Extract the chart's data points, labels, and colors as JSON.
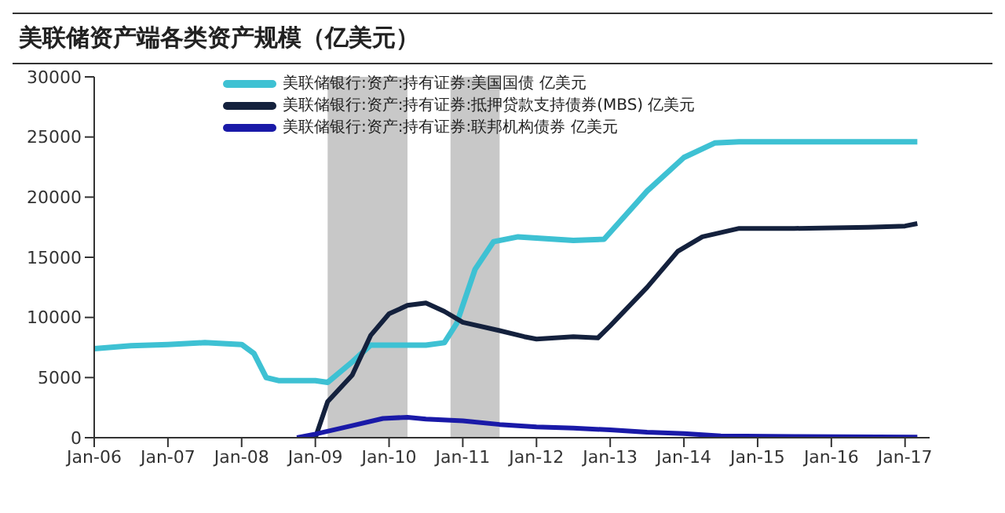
{
  "chart_data": {
    "type": "line",
    "title": "美联储资产端各类资产规模（亿美元）",
    "series": [
      {
        "name": "美联储银行:资产:持有证券:美国国债 亿美元",
        "color": "#3ec1d3",
        "x": [
          "2006-01",
          "2006-07",
          "2007-01",
          "2007-07",
          "2008-01",
          "2008-03",
          "2008-05",
          "2008-07",
          "2009-01",
          "2009-03",
          "2009-07",
          "2009-10",
          "2010-07",
          "2010-10",
          "2010-12",
          "2011-03",
          "2011-06",
          "2011-10",
          "2012-01",
          "2012-07",
          "2012-12",
          "2013-07",
          "2014-01",
          "2014-06",
          "2014-10",
          "2017-03"
        ],
        "values": [
          7400,
          7650,
          7750,
          7900,
          7750,
          7000,
          5000,
          4750,
          4750,
          4600,
          6300,
          7700,
          7700,
          7900,
          9500,
          14000,
          16300,
          16700,
          16600,
          16400,
          16500,
          20500,
          23300,
          24500,
          24600,
          24600
        ]
      },
      {
        "name": "美联储银行:资产:持有证券:抵押贷款支持债券(MBS) 亿美元",
        "color": "#14213d",
        "x": [
          "2009-01",
          "2009-03",
          "2009-07",
          "2009-10",
          "2010-01",
          "2010-04",
          "2010-07",
          "2010-10",
          "2011-01",
          "2011-07",
          "2011-11",
          "2012-01",
          "2012-07",
          "2012-11",
          "2013-01",
          "2013-07",
          "2013-12",
          "2014-04",
          "2014-10",
          "2015-07",
          "2016-07",
          "2017-01",
          "2017-03"
        ],
        "values": [
          0,
          3000,
          5200,
          8500,
          10300,
          11000,
          11200,
          10500,
          9600,
          8900,
          8400,
          8200,
          8400,
          8300,
          9300,
          12500,
          15500,
          16700,
          17400,
          17400,
          17500,
          17600,
          17800
        ]
      },
      {
        "name": "美联储银行:资产:持有证券:联邦机构债券 亿美元",
        "color": "#1a1aa8",
        "x": [
          "2008-10",
          "2009-01",
          "2009-07",
          "2009-12",
          "2010-04",
          "2010-07",
          "2011-01",
          "2011-07",
          "2012-01",
          "2012-07",
          "2013-01",
          "2013-07",
          "2014-01",
          "2014-07",
          "2015-07",
          "2017-03"
        ],
        "values": [
          0,
          300,
          1000,
          1600,
          1700,
          1550,
          1400,
          1100,
          900,
          800,
          650,
          450,
          350,
          150,
          100,
          50
        ]
      }
    ],
    "xlim": [
      "2006-01",
      "2017-05"
    ],
    "xticks": [
      {
        "value": "2006-01",
        "label": "Jan-06"
      },
      {
        "value": "2007-01",
        "label": "Jan-07"
      },
      {
        "value": "2008-01",
        "label": "Jan-08"
      },
      {
        "value": "2009-01",
        "label": "Jan-09"
      },
      {
        "value": "2010-01",
        "label": "Jan-10"
      },
      {
        "value": "2011-01",
        "label": "Jan-11"
      },
      {
        "value": "2012-01",
        "label": "Jan-12"
      },
      {
        "value": "2013-01",
        "label": "Jan-13"
      },
      {
        "value": "2014-01",
        "label": "Jan-14"
      },
      {
        "value": "2015-01",
        "label": "Jan-15"
      },
      {
        "value": "2016-01",
        "label": "Jan-16"
      },
      {
        "value": "2017-01",
        "label": "Jan-17"
      }
    ],
    "ylim": [
      0,
      30000
    ],
    "yticks": [
      0,
      5000,
      10000,
      15000,
      20000,
      25000,
      30000
    ],
    "bands": [
      {
        "axis": "x",
        "from": "2009-03",
        "to": "2010-04",
        "color": "#c8c8c8"
      },
      {
        "axis": "x",
        "from": "2010-11",
        "to": "2011-07",
        "color": "#c8c8c8"
      }
    ],
    "grid": false,
    "legend": "top left",
    "marker": "none",
    "line_style": "solid"
  }
}
